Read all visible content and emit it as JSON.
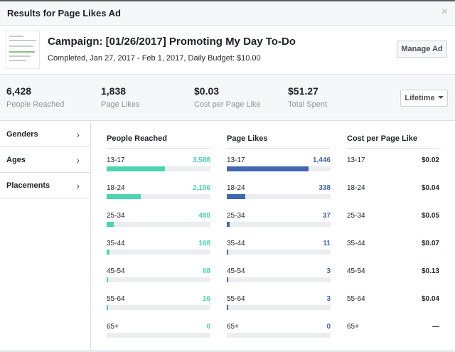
{
  "dialog": {
    "title": "Results for Page Likes Ad",
    "close": "×"
  },
  "campaign": {
    "name": "Campaign: [01/26/2017] Promoting My Day To-Do",
    "meta": "Completed, Jan 27, 2017 - Feb 1, 2017, Daily Budget: $10.00",
    "manage_label": "Manage Ad"
  },
  "stats": [
    {
      "value": "6,428",
      "label": "People Reached"
    },
    {
      "value": "1,838",
      "label": "Page Likes"
    },
    {
      "value": "$0.03",
      "label": "Cost per Page Like"
    },
    {
      "value": "$51.27",
      "label": "Total Spent"
    }
  ],
  "period": {
    "label": "Lifetime"
  },
  "sidebar": {
    "items": [
      {
        "label": "Genders",
        "chevron": "›"
      },
      {
        "label": "Ages",
        "chevron": "›"
      },
      {
        "label": "Placements",
        "chevron": "›"
      }
    ]
  },
  "colors": {
    "reach": "#4cd4b0",
    "likes": "#4267b2",
    "track": "#ebedf0"
  },
  "breakdown": {
    "reach": {
      "header": "People Reached",
      "rows": [
        {
          "age": "13-17",
          "value": "3,588",
          "fraction": 0.56
        },
        {
          "age": "18-24",
          "value": "2,106",
          "fraction": 0.33
        },
        {
          "age": "25-34",
          "value": "480",
          "fraction": 0.07
        },
        {
          "age": "35-44",
          "value": "168",
          "fraction": 0.025
        },
        {
          "age": "45-54",
          "value": "68",
          "fraction": 0.012
        },
        {
          "age": "55-64",
          "value": "16",
          "fraction": 0.005
        },
        {
          "age": "65+",
          "value": "0",
          "fraction": 0
        }
      ]
    },
    "likes": {
      "header": "Page Likes",
      "rows": [
        {
          "age": "13-17",
          "value": "1,446",
          "fraction": 0.79
        },
        {
          "age": "18-24",
          "value": "338",
          "fraction": 0.18
        },
        {
          "age": "25-34",
          "value": "37",
          "fraction": 0.025
        },
        {
          "age": "35-44",
          "value": "11",
          "fraction": 0.012
        },
        {
          "age": "45-54",
          "value": "3",
          "fraction": 0.006
        },
        {
          "age": "55-64",
          "value": "3",
          "fraction": 0.006
        },
        {
          "age": "65+",
          "value": "0",
          "fraction": 0
        }
      ]
    },
    "cost": {
      "header": "Cost per Page Like",
      "rows": [
        {
          "age": "13-17",
          "value": "$0.02"
        },
        {
          "age": "18-24",
          "value": "$0.04"
        },
        {
          "age": "25-34",
          "value": "$0.05"
        },
        {
          "age": "35-44",
          "value": "$0.07"
        },
        {
          "age": "45-54",
          "value": "$0.13"
        },
        {
          "age": "55-64",
          "value": "$0.04"
        },
        {
          "age": "65+",
          "value": "—"
        }
      ]
    }
  }
}
